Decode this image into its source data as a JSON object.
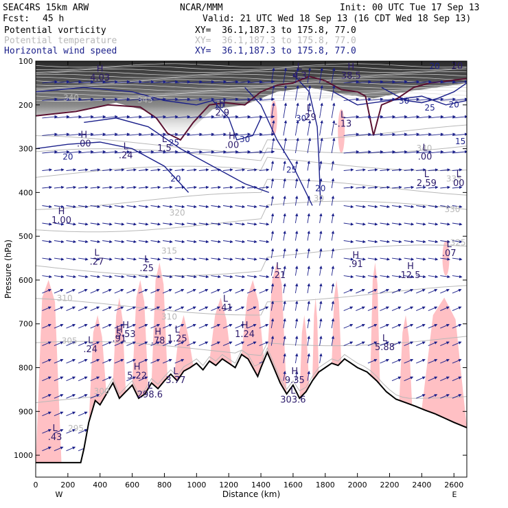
{
  "header": {
    "model": "SEAC4RS 15km ARW",
    "center": "NCAR/MMM",
    "init": "Init: 00 UTC Tue 17 Sep 13",
    "fcst_label": "Fcst:",
    "fcst_value": "45 h",
    "valid": "Valid: 21 UTC Wed 18 Sep 13 (16 CDT Wed 18 Sep 13)",
    "fields": [
      {
        "name": "Potential vorticity",
        "xy": "XY=  36.1,187.3 to 175.8, 77.0",
        "color": "#000000"
      },
      {
        "name": "Potential temperature",
        "xy": "XY=  36.1,187.3 to 175.8, 77.0",
        "color": "#b8b8b8"
      },
      {
        "name": "Horizontal wind speed",
        "xy": "XY=  36.1,187.3 to 175.8, 77.0",
        "color": "#1a1f8a"
      }
    ]
  },
  "chart_data": {
    "type": "cross-section",
    "xlabel": "Distance (km)",
    "ylabel": "Pressure (hPa)",
    "xlim": [
      0,
      2680
    ],
    "ylim": [
      1050,
      100
    ],
    "x_ticks": [
      0,
      200,
      400,
      600,
      800,
      1000,
      1200,
      1400,
      1600,
      1800,
      2000,
      2200,
      2400,
      2600
    ],
    "y_ticks": [
      100,
      200,
      300,
      400,
      500,
      600,
      700,
      800,
      900,
      1000
    ],
    "x_end_labels": {
      "left": "W",
      "right": "E"
    },
    "colors": {
      "theta": "#b8b8b8",
      "wind": "#1a1f8a",
      "pv_shade": "#ffc0c4",
      "tropopause": "#5a1030",
      "terrain": "#000000"
    },
    "terrain": [
      [
        0,
        1017
      ],
      [
        100,
        1017
      ],
      [
        280,
        1017
      ],
      [
        300,
        985
      ],
      [
        330,
        925
      ],
      [
        370,
        875
      ],
      [
        400,
        885
      ],
      [
        440,
        860
      ],
      [
        480,
        835
      ],
      [
        520,
        870
      ],
      [
        560,
        855
      ],
      [
        600,
        840
      ],
      [
        640,
        870
      ],
      [
        680,
        860
      ],
      [
        720,
        835
      ],
      [
        760,
        848
      ],
      [
        800,
        830
      ],
      [
        840,
        815
      ],
      [
        880,
        830
      ],
      [
        920,
        808
      ],
      [
        960,
        800
      ],
      [
        1000,
        790
      ],
      [
        1040,
        805
      ],
      [
        1080,
        785
      ],
      [
        1120,
        795
      ],
      [
        1160,
        780
      ],
      [
        1200,
        790
      ],
      [
        1240,
        800
      ],
      [
        1280,
        770
      ],
      [
        1320,
        780
      ],
      [
        1350,
        800
      ],
      [
        1380,
        820
      ],
      [
        1400,
        800
      ],
      [
        1440,
        765
      ],
      [
        1480,
        800
      ],
      [
        1520,
        835
      ],
      [
        1560,
        860
      ],
      [
        1600,
        840
      ],
      [
        1640,
        870
      ],
      [
        1680,
        855
      ],
      [
        1720,
        830
      ],
      [
        1760,
        810
      ],
      [
        1800,
        800
      ],
      [
        1840,
        790
      ],
      [
        1880,
        795
      ],
      [
        1920,
        780
      ],
      [
        1960,
        790
      ],
      [
        2000,
        800
      ],
      [
        2060,
        810
      ],
      [
        2120,
        830
      ],
      [
        2180,
        855
      ],
      [
        2240,
        872
      ],
      [
        2300,
        880
      ],
      [
        2360,
        888
      ],
      [
        2420,
        897
      ],
      [
        2480,
        905
      ],
      [
        2540,
        915
      ],
      [
        2600,
        925
      ],
      [
        2680,
        937
      ]
    ],
    "theta_labels": [
      {
        "text": "310",
        "x": 180,
        "p": 648
      },
      {
        "text": "315",
        "x": 830,
        "p": 540
      },
      {
        "text": "320",
        "x": 880,
        "p": 453
      },
      {
        "text": "325",
        "x": 2625,
        "p": 521
      },
      {
        "text": "330",
        "x": 2590,
        "p": 445
      },
      {
        "text": "335",
        "x": 2600,
        "p": 375
      },
      {
        "text": "340",
        "x": 2415,
        "p": 305
      },
      {
        "text": "305",
        "x": 210,
        "p": 745
      },
      {
        "text": "310",
        "x": 830,
        "p": 690
      },
      {
        "text": "300",
        "x": 410,
        "p": 860
      },
      {
        "text": "340",
        "x": 220,
        "p": 190
      },
      {
        "text": "345",
        "x": 680,
        "p": 195
      },
      {
        "text": "30",
        "x": 1760,
        "p": 420
      },
      {
        "text": "295",
        "x": 250,
        "p": 945
      }
    ],
    "wind_labels": [
      {
        "text": "20",
        "x": 200,
        "p": 325
      },
      {
        "text": "20",
        "x": 870,
        "p": 375
      },
      {
        "text": "25",
        "x": 1590,
        "p": 355
      },
      {
        "text": "20",
        "x": 1770,
        "p": 397
      },
      {
        "text": "30",
        "x": 1650,
        "p": 237
      },
      {
        "text": "30",
        "x": 2290,
        "p": 197
      },
      {
        "text": "25",
        "x": 2450,
        "p": 213
      },
      {
        "text": "20",
        "x": 2600,
        "p": 206
      },
      {
        "text": "20",
        "x": 2480,
        "p": 118
      },
      {
        "text": "30",
        "x": 1300,
        "p": 285
      },
      {
        "text": "25",
        "x": 860,
        "p": 293
      },
      {
        "text": "15",
        "x": 2640,
        "p": 290
      },
      {
        "text": "10",
        "x": 1140,
        "p": 207
      }
    ],
    "hl_markers": [
      {
        "kind": "H",
        "value": "1.00",
        "x": 160,
        "p": 470
      },
      {
        "kind": "L",
        "value": ".27",
        "x": 380,
        "p": 565
      },
      {
        "kind": "L",
        "value": ".25",
        "x": 690,
        "p": 580
      },
      {
        "kind": "L",
        "value": ".24",
        "x": 340,
        "p": 765
      },
      {
        "kind": "H",
        "value": ".91",
        "x": 520,
        "p": 740
      },
      {
        "kind": "H",
        "value": "5.53",
        "x": 560,
        "p": 730
      },
      {
        "kind": "H",
        "value": ".78",
        "x": 760,
        "p": 745
      },
      {
        "kind": "L",
        "value": "1.25",
        "x": 880,
        "p": 740
      },
      {
        "kind": "H",
        "value": "5.22",
        "x": 630,
        "p": 825
      },
      {
        "kind": "L",
        "value": "3.77",
        "x": 870,
        "p": 835
      },
      {
        "kind": "L",
        "value": "298.6",
        "x": 710,
        "p": 868
      },
      {
        "kind": "L",
        "value": ".41",
        "x": 1180,
        "p": 670
      },
      {
        "kind": "H",
        "value": "1.24",
        "x": 1300,
        "p": 730
      },
      {
        "kind": "L",
        "value": ".21",
        "x": 1510,
        "p": 595
      },
      {
        "kind": "H",
        "value": ".91",
        "x": 1990,
        "p": 570
      },
      {
        "kind": "H",
        "value": "12.5",
        "x": 2330,
        "p": 595
      },
      {
        "kind": "L",
        "value": ".07",
        "x": 2570,
        "p": 545
      },
      {
        "kind": "L",
        "value": "5.88",
        "x": 2170,
        "p": 760
      },
      {
        "kind": "H",
        "value": "9.35",
        "x": 1610,
        "p": 835
      },
      {
        "kind": "L",
        "value": "303.6",
        "x": 1600,
        "p": 880
      },
      {
        "kind": "L",
        "value": ".43",
        "x": 120,
        "p": 965
      },
      {
        "kind": "L",
        "value": ".00",
        "x": 2420,
        "p": 325
      },
      {
        "kind": "L",
        "value": "2.59",
        "x": 2430,
        "p": 385
      },
      {
        "kind": "L",
        "value": "00",
        "x": 2630,
        "p": 385
      },
      {
        "kind": "L",
        "value": "-.13",
        "x": 1910,
        "p": 250
      },
      {
        "kind": "L",
        "value": ".29",
        "x": 1700,
        "p": 235
      },
      {
        "kind": "H",
        "value": "2.9",
        "x": 1160,
        "p": 225
      },
      {
        "kind": "H",
        "value": ".00",
        "x": 1220,
        "p": 298
      },
      {
        "kind": "H",
        "value": ".00",
        "x": 300,
        "p": 295
      },
      {
        "kind": "L",
        "value": ".24",
        "x": 560,
        "p": 322
      },
      {
        "kind": "L",
        "value": "1.5",
        "x": 800,
        "p": 305
      },
      {
        "kind": "L",
        "value": "4.3",
        "x": 1640,
        "p": 140
      },
      {
        "kind": "H",
        "value": "38.5",
        "x": 1960,
        "p": 140
      },
      {
        "kind": "H",
        "value": "4.03",
        "x": 400,
        "p": 145
      },
      {
        "kind": "L",
        "value": "20",
        "x": 2620,
        "p": 118
      }
    ]
  }
}
